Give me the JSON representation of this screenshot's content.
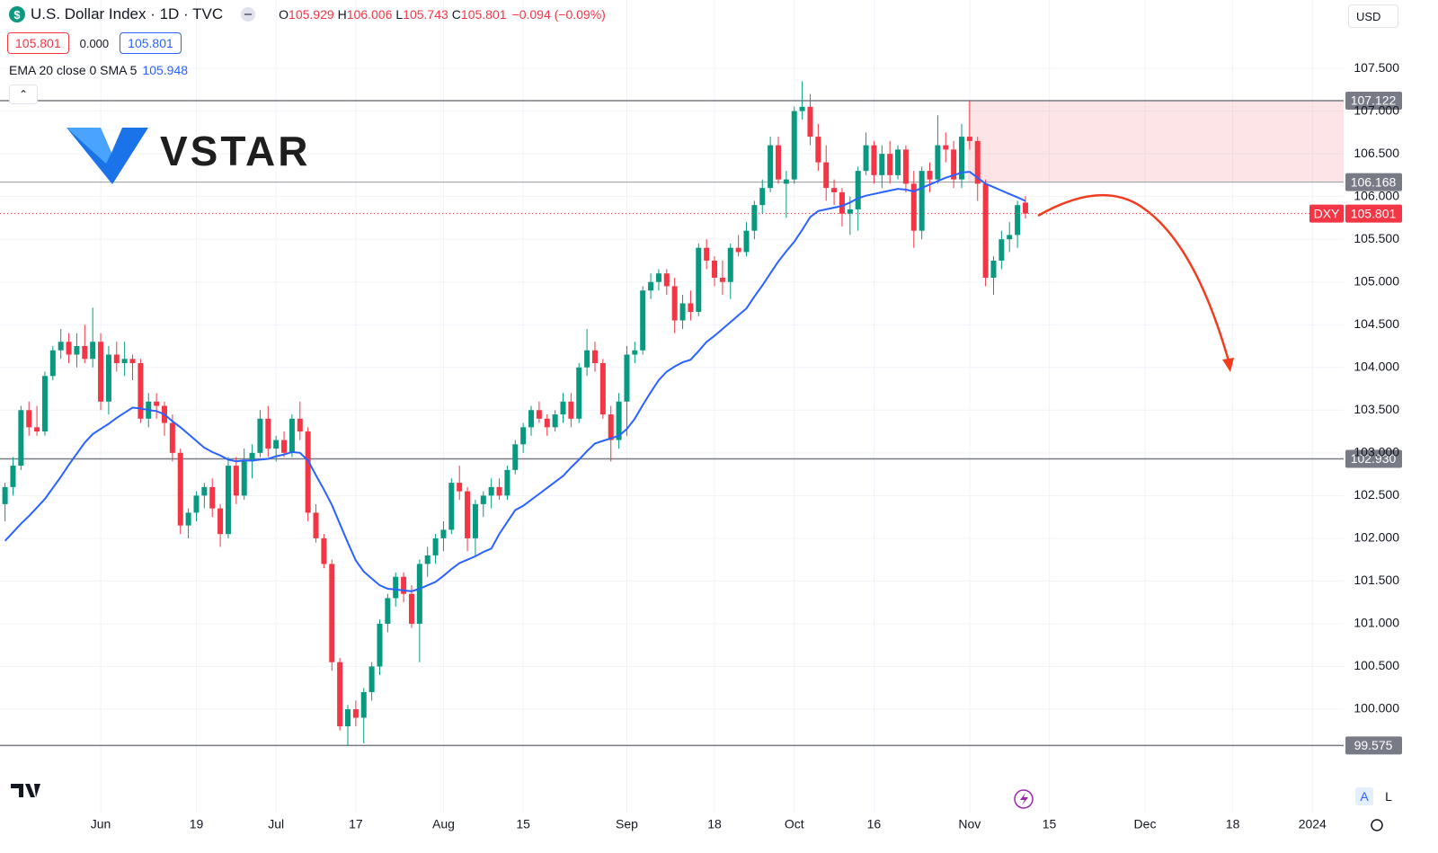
{
  "header": {
    "title": "U.S. Dollar Index · 1D · TVC",
    "ohlc_labels": [
      "O",
      "H",
      "L",
      "C"
    ],
    "change": "−0.094 (−0.09%)",
    "quote_boxes": [
      "105.801",
      "0.000",
      "105.801"
    ],
    "indicator": "EMA 20 close 0 SMA 5",
    "currency": "USD",
    "scale_buttons": [
      "A",
      "L"
    ],
    "watermark": "VSTAR",
    "symbol": "DXY"
  },
  "chart_data": {
    "type": "candlestick",
    "categories": [
      null,
      null,
      null,
      null,
      null,
      null,
      null,
      null,
      null,
      null,
      null,
      null,
      "Jun",
      null,
      null,
      null,
      null,
      null,
      null,
      null,
      null,
      null,
      null,
      null,
      "19",
      null,
      null,
      null,
      null,
      null,
      null,
      null,
      null,
      null,
      "Jul",
      null,
      null,
      null,
      null,
      null,
      null,
      null,
      null,
      null,
      "17",
      null,
      null,
      null,
      null,
      null,
      null,
      null,
      null,
      null,
      null,
      "Aug",
      null,
      null,
      null,
      null,
      null,
      null,
      null,
      null,
      null,
      "15",
      null,
      null,
      null,
      null,
      null,
      null,
      null,
      null,
      null,
      null,
      null,
      null,
      "Sep",
      null,
      null,
      null,
      null,
      null,
      null,
      null,
      null,
      null,
      null,
      "18",
      null,
      null,
      null,
      null,
      null,
      null,
      null,
      null,
      null,
      "Oct",
      null,
      null,
      null,
      null,
      null,
      null,
      null,
      null,
      null,
      "16",
      null,
      null,
      null,
      null,
      null,
      null,
      null,
      null,
      null,
      null,
      null,
      "Nov",
      null,
      null,
      null,
      null,
      null,
      null,
      null,
      null,
      null,
      "15",
      null,
      null,
      null,
      null,
      null,
      null,
      null,
      null,
      null,
      null,
      null,
      "Dec",
      null,
      null,
      null,
      null,
      null,
      null,
      null,
      null,
      null,
      null,
      "18",
      null,
      null,
      null,
      null,
      null,
      null,
      null,
      null,
      null,
      "2024",
      null,
      null,
      null,
      null
    ],
    "open": [
      102.4,
      102.6,
      102.85,
      103.5,
      103.3,
      103.25,
      103.9,
      104.2,
      104.3,
      104.15,
      104.25,
      104.1,
      104.3,
      103.6,
      104.15,
      104.05,
      104.1,
      104.05,
      103.4,
      103.6,
      103.55,
      103.35,
      103.0,
      102.15,
      102.3,
      102.5,
      102.6,
      102.35,
      102.05,
      102.85,
      102.5,
      102.9,
      103.0,
      103.4,
      103.05,
      103.15,
      103.0,
      103.4,
      103.25,
      102.3,
      102.0,
      101.7,
      100.55,
      99.8,
      100.0,
      99.9,
      100.2,
      100.5,
      101.0,
      101.3,
      101.55,
      101.35,
      101.0,
      101.7,
      101.8,
      102.0,
      102.1,
      102.65,
      102.55,
      102.0,
      102.4,
      102.5,
      102.6,
      102.5,
      102.8,
      103.1,
      103.3,
      103.5,
      103.4,
      103.3,
      103.45,
      103.6,
      103.4,
      104.0,
      104.2,
      104.05,
      103.45,
      103.15,
      103.6,
      104.15,
      104.2,
      104.9,
      105.0,
      105.1,
      104.95,
      104.55,
      104.75,
      104.65,
      105.4,
      105.25,
      105.05,
      105.0,
      105.4,
      105.35,
      105.6,
      105.9,
      106.1,
      106.6,
      106.15,
      106.2,
      107.0,
      107.05,
      106.7,
      106.4,
      106.1,
      106.05,
      105.8,
      105.85,
      106.3,
      106.6,
      106.25,
      106.5,
      106.25,
      106.55,
      106.15,
      105.6,
      106.3,
      106.2,
      106.6,
      106.55,
      106.2,
      106.7,
      106.65,
      106.15,
      105.05,
      105.25,
      105.5,
      105.55,
      105.929,
      null,
      null,
      null,
      null,
      null,
      null,
      null,
      null,
      null,
      null,
      null,
      null,
      null,
      null,
      null,
      null,
      null,
      null,
      null,
      null,
      null,
      null,
      null,
      null,
      null,
      null,
      null,
      null,
      null,
      null,
      null,
      null,
      null,
      null,
      null,
      null,
      null,
      null,
      null,
      null
    ],
    "high": [
      102.65,
      102.95,
      103.55,
      103.6,
      103.55,
      103.95,
      104.25,
      104.45,
      104.4,
      104.4,
      104.5,
      104.7,
      104.4,
      104.25,
      104.3,
      104.3,
      104.15,
      104.1,
      103.7,
      103.7,
      103.6,
      103.45,
      103.05,
      102.35,
      102.55,
      102.65,
      102.7,
      102.4,
      102.95,
      102.95,
      103.05,
      103.1,
      103.5,
      103.55,
      103.2,
      103.25,
      103.45,
      103.6,
      103.3,
      102.4,
      102.05,
      101.75,
      100.6,
      100.05,
      100.1,
      100.25,
      100.55,
      101.05,
      101.35,
      101.6,
      101.6,
      101.45,
      101.75,
      101.9,
      102.05,
      102.2,
      102.7,
      102.85,
      102.6,
      102.45,
      102.55,
      102.7,
      102.7,
      102.85,
      103.15,
      103.35,
      103.55,
      103.6,
      103.45,
      103.5,
      103.7,
      103.7,
      104.05,
      104.45,
      104.3,
      104.1,
      103.55,
      103.7,
      104.25,
      104.3,
      104.95,
      105.1,
      105.15,
      105.15,
      105.05,
      104.85,
      104.9,
      105.45,
      105.5,
      105.3,
      105.25,
      105.45,
      105.55,
      105.7,
      105.95,
      106.2,
      106.7,
      106.7,
      106.3,
      107.05,
      107.35,
      107.2,
      106.85,
      106.6,
      106.2,
      106.1,
      106.0,
      106.35,
      106.75,
      106.65,
      106.6,
      106.65,
      106.6,
      106.6,
      106.3,
      106.35,
      106.4,
      106.95,
      106.75,
      106.65,
      106.85,
      107.12,
      106.7,
      106.2,
      105.3,
      105.6,
      105.7,
      105.95,
      106.006,
      null,
      null,
      null,
      null,
      null,
      null,
      null,
      null,
      null,
      null,
      null,
      null,
      null,
      null,
      null,
      null,
      null,
      null,
      null,
      null,
      null,
      null,
      null,
      null,
      null,
      null,
      null,
      null,
      null,
      null,
      null,
      null,
      null,
      null,
      null,
      null,
      null,
      null,
      null,
      null
    ],
    "low": [
      102.2,
      102.5,
      102.8,
      103.2,
      103.2,
      103.2,
      103.85,
      104.1,
      104.05,
      104.0,
      104.05,
      104.0,
      103.5,
      103.45,
      103.95,
      103.9,
      103.85,
      103.35,
      103.3,
      103.4,
      103.2,
      102.9,
      102.05,
      102.0,
      102.2,
      102.35,
      102.25,
      101.9,
      102.0,
      102.4,
      102.45,
      102.7,
      102.95,
      102.95,
      102.9,
      102.95,
      102.95,
      103.15,
      102.2,
      101.95,
      101.65,
      100.45,
      99.75,
      99.57,
      99.8,
      99.6,
      100.1,
      100.4,
      100.9,
      101.2,
      101.25,
      100.95,
      100.55,
      101.55,
      101.7,
      101.85,
      102.05,
      102.45,
      101.85,
      101.8,
      102.25,
      102.35,
      102.45,
      102.45,
      102.75,
      103.0,
      103.2,
      103.35,
      103.2,
      103.25,
      103.35,
      103.3,
      103.35,
      103.9,
      103.95,
      103.4,
      102.9,
      103.05,
      103.2,
      104.05,
      104.15,
      104.8,
      104.9,
      104.85,
      104.4,
      104.45,
      104.55,
      104.6,
      105.15,
      104.95,
      104.85,
      104.8,
      105.3,
      105.3,
      105.5,
      105.8,
      106.05,
      106.15,
      105.75,
      106.15,
      106.9,
      106.6,
      106.3,
      105.95,
      105.9,
      105.65,
      105.55,
      105.6,
      106.25,
      106.15,
      106.1,
      106.15,
      106.2,
      106.05,
      105.4,
      105.5,
      106.05,
      106.15,
      106.4,
      106.1,
      106.1,
      106.55,
      105.95,
      104.95,
      104.85,
      105.15,
      105.35,
      105.4,
      105.743,
      null,
      null,
      null,
      null,
      null,
      null,
      null,
      null,
      null,
      null,
      null,
      null,
      null,
      null,
      null,
      null,
      null,
      null,
      null,
      null,
      null,
      null,
      null,
      null,
      null,
      null,
      null,
      null,
      null,
      null,
      null,
      null,
      null,
      null,
      null,
      null,
      null,
      null,
      null,
      null
    ],
    "close": [
      102.6,
      102.85,
      103.5,
      103.3,
      103.25,
      103.9,
      104.2,
      104.3,
      104.15,
      104.25,
      104.1,
      104.3,
      103.6,
      104.15,
      104.05,
      104.1,
      104.05,
      103.4,
      103.6,
      103.55,
      103.35,
      103.0,
      102.15,
      102.3,
      102.5,
      102.6,
      102.35,
      102.05,
      102.85,
      102.5,
      102.9,
      103.0,
      103.4,
      103.05,
      103.15,
      103.0,
      103.4,
      103.25,
      102.3,
      102.0,
      101.7,
      100.55,
      99.8,
      100.0,
      99.9,
      100.2,
      100.5,
      101.0,
      101.3,
      101.55,
      101.35,
      101.0,
      101.7,
      101.8,
      102.0,
      102.1,
      102.65,
      102.55,
      102.0,
      102.4,
      102.5,
      102.6,
      102.5,
      102.8,
      103.1,
      103.3,
      103.5,
      103.4,
      103.3,
      103.45,
      103.6,
      103.4,
      104.0,
      104.2,
      104.05,
      103.45,
      103.15,
      103.6,
      104.15,
      104.2,
      104.9,
      105.0,
      105.1,
      104.95,
      104.55,
      104.75,
      104.65,
      105.4,
      105.25,
      105.05,
      105.0,
      105.4,
      105.35,
      105.6,
      105.9,
      106.1,
      106.6,
      106.2,
      106.2,
      107.0,
      107.05,
      106.7,
      106.4,
      106.1,
      106.05,
      105.8,
      105.85,
      106.3,
      106.6,
      106.25,
      106.5,
      106.25,
      106.55,
      106.15,
      105.6,
      106.3,
      106.2,
      106.6,
      106.55,
      106.2,
      106.7,
      106.65,
      106.15,
      105.05,
      105.25,
      105.5,
      105.55,
      105.9,
      105.801,
      null,
      null,
      null,
      null,
      null,
      null,
      null,
      null,
      null,
      null,
      null,
      null,
      null,
      null,
      null,
      null,
      null,
      null,
      null,
      null,
      null,
      null,
      null,
      null,
      null,
      null,
      null,
      null,
      null,
      null,
      null,
      null,
      null,
      null,
      null,
      null,
      null,
      null,
      null,
      null
    ],
    "up_color": "#089981",
    "down_color": "#f23645",
    "ema": {
      "color": "#2962ff",
      "values": [
        101.97,
        102.07,
        102.17,
        102.26,
        102.36,
        102.46,
        102.59,
        102.72,
        102.86,
        102.99,
        103.12,
        103.22,
        103.28,
        103.34,
        103.41,
        103.47,
        103.53,
        103.52,
        103.5,
        103.49,
        103.45,
        103.37,
        103.3,
        103.22,
        103.14,
        103.06,
        103.01,
        102.97,
        102.92,
        102.9,
        102.91,
        102.91,
        102.92,
        102.93,
        102.96,
        102.98,
        103.01,
        103.0,
        102.91,
        102.74,
        102.57,
        102.39,
        102.17,
        101.95,
        101.74,
        101.61,
        101.53,
        101.45,
        101.41,
        101.4,
        101.39,
        101.38,
        101.41,
        101.45,
        101.49,
        101.56,
        101.64,
        101.71,
        101.75,
        101.79,
        101.84,
        101.88,
        102.05,
        102.19,
        102.33,
        102.38,
        102.45,
        102.52,
        102.59,
        102.66,
        102.73,
        102.83,
        102.92,
        103.02,
        103.11,
        103.14,
        103.17,
        103.2,
        103.28,
        103.4,
        103.56,
        103.71,
        103.85,
        103.95,
        104.01,
        104.06,
        104.09,
        104.19,
        104.3,
        104.37,
        104.45,
        104.53,
        104.61,
        104.69,
        104.83,
        104.96,
        105.1,
        105.24,
        105.36,
        105.47,
        105.61,
        105.76,
        105.83,
        105.85,
        105.87,
        105.89,
        105.93,
        105.98,
        106.01,
        106.03,
        106.05,
        106.07,
        106.09,
        106.08,
        106.06,
        106.1,
        106.14,
        106.18,
        106.22,
        106.25,
        106.28,
        106.29,
        106.22,
        106.15,
        106.11,
        106.07,
        106.03,
        105.99,
        105.948,
        null,
        null,
        null,
        null,
        null,
        null,
        null,
        null,
        null,
        null,
        null,
        null,
        null,
        null,
        null,
        null,
        null,
        null,
        null,
        null,
        null,
        null,
        null,
        null,
        null,
        null,
        null,
        null,
        null,
        null,
        null,
        null,
        null,
        null,
        null,
        null,
        null,
        null,
        null,
        null
      ]
    },
    "ylim": [
      98.78,
      108.3
    ],
    "yticks": [
      {
        "value": 100,
        "label": "100.000"
      },
      {
        "value": 100.5,
        "label": "100.500"
      },
      {
        "value": 101,
        "label": "101.000"
      },
      {
        "value": 101.5,
        "label": "101.500"
      },
      {
        "value": 102,
        "label": "102.000"
      },
      {
        "value": 102.5,
        "label": "102.500"
      },
      {
        "value": 103,
        "label": "103.000"
      },
      {
        "value": 103.5,
        "label": "103.500"
      },
      {
        "value": 104,
        "label": "104.000"
      },
      {
        "value": 104.5,
        "label": "104.500"
      },
      {
        "value": 105,
        "label": "105.000"
      },
      {
        "value": 105.5,
        "label": "105.500"
      },
      {
        "value": 106,
        "label": "106.000"
      },
      {
        "value": 106.5,
        "label": "106.500"
      },
      {
        "value": 107,
        "label": "107.000"
      },
      {
        "value": 107.5,
        "label": "107.500"
      }
    ],
    "levels": [
      107.122,
      {
        "value": 102.93,
        "label": "102.930"
      },
      99.575
    ],
    "zone_low": 106.168,
    "grid": true
  }
}
